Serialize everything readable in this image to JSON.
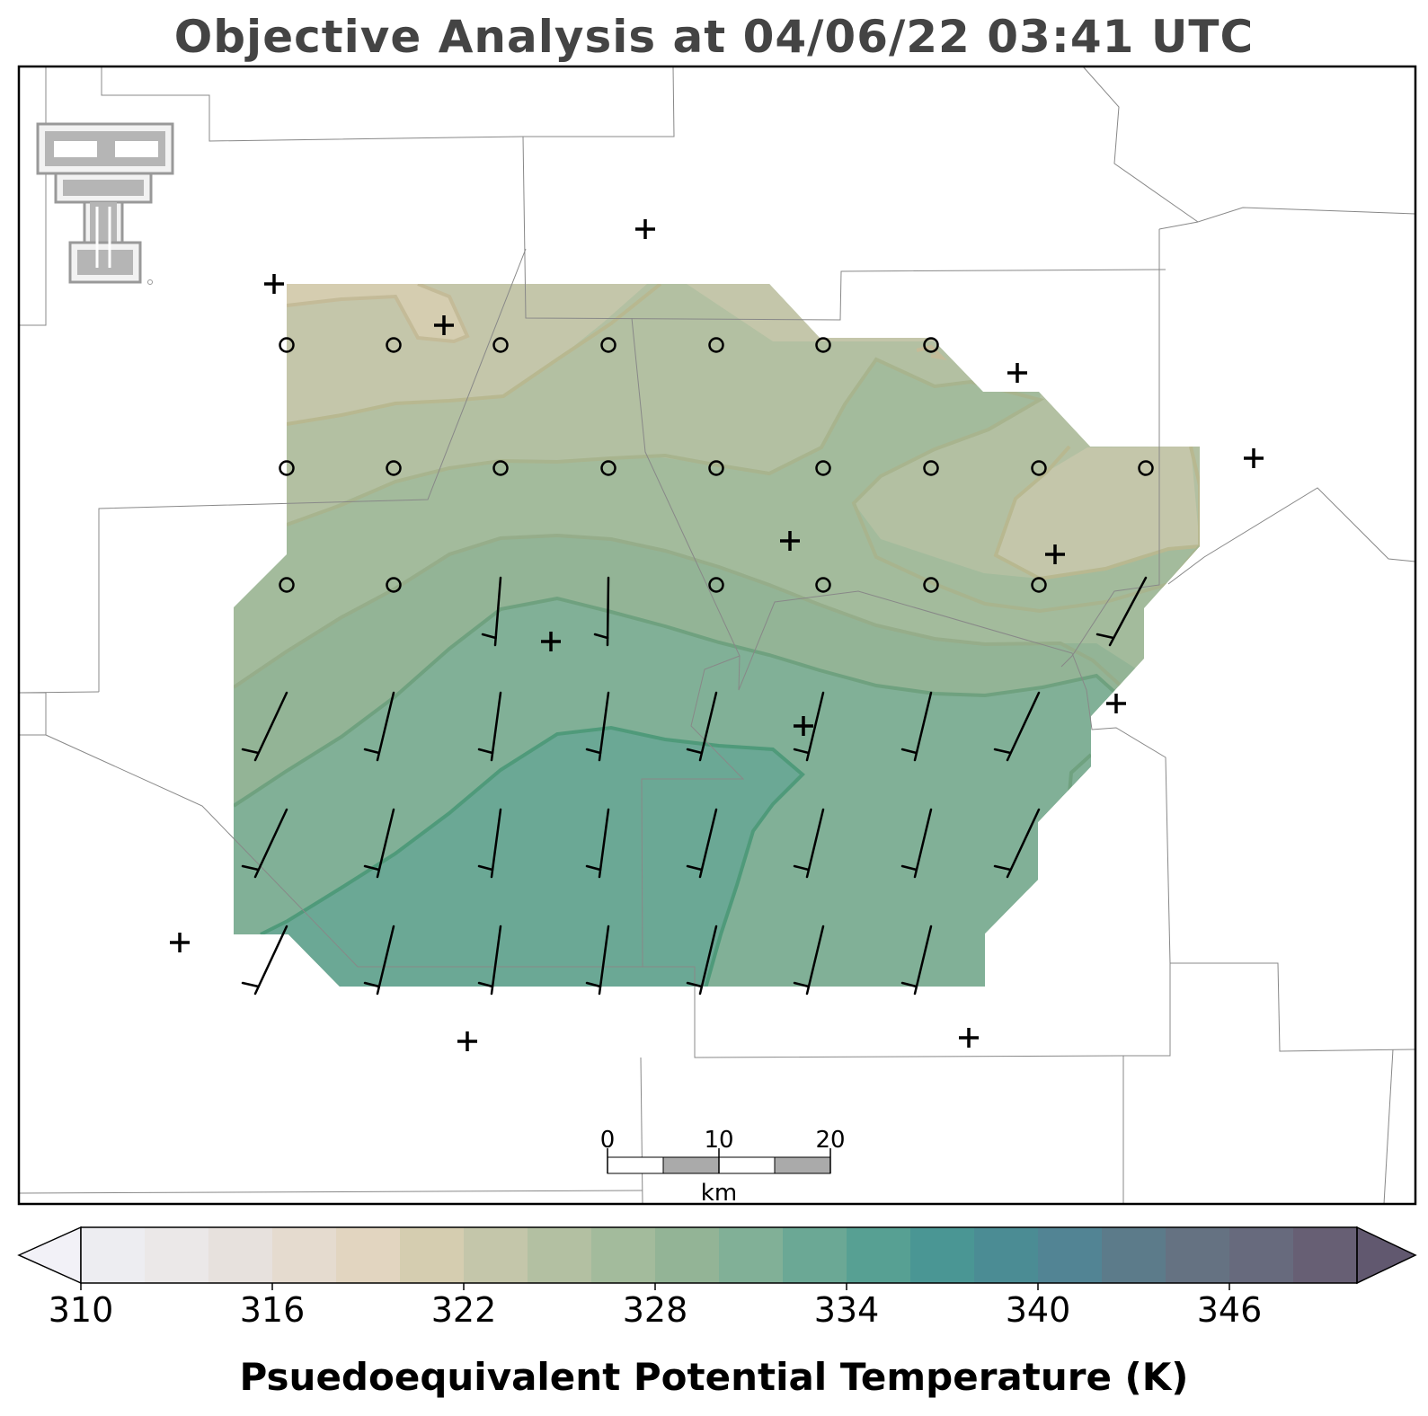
{
  "title": "Objective Analysis at 04/06/22 03:41 UTC",
  "colorbar": {
    "label": "Psuedoequivalent Potential Temperature (K)",
    "ticks": [
      "310",
      "316",
      "322",
      "328",
      "334",
      "340",
      "346"
    ],
    "range": [
      310,
      350
    ],
    "step": 2,
    "colors": [
      "#ededf1",
      "#ebe8e8",
      "#e7e1dd",
      "#e5dbcf",
      "#e2d5c0",
      "#d5cdb0",
      "#c4c6aa",
      "#b3c0a2",
      "#a3bb9c",
      "#93b496",
      "#81b097",
      "#6ba895",
      "#57a093",
      "#4a9694",
      "#4b8c94",
      "#528494",
      "#5c7b8a",
      "#657282",
      "#676a7d",
      "#675f74"
    ],
    "under_color": "#f2f1f7",
    "over_color": "#61586f"
  },
  "scalebar": {
    "ticks": [
      "0",
      "10",
      "20"
    ],
    "unit": "km"
  },
  "logo": {
    "name": "Texas Tech Double T",
    "text": ""
  },
  "contour_levels_K": [
    316,
    318,
    320,
    322,
    324,
    326,
    328,
    330,
    332
  ],
  "station_marker": "+",
  "missing_obs_marker": "circle",
  "colors": {
    "title": "#444444",
    "county_lines": "#888888",
    "markers": "#000000"
  }
}
